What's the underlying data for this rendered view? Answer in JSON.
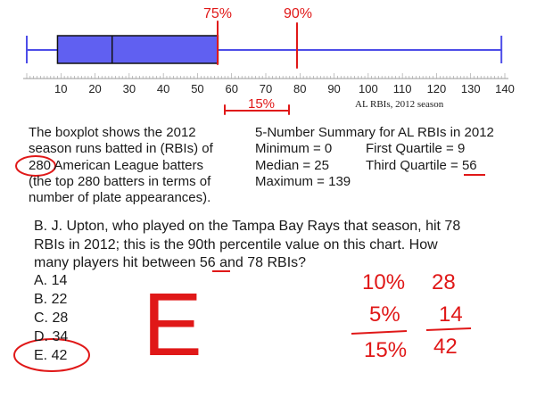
{
  "chart_data": {
    "type": "boxplot",
    "xlabel": "AL RBIs, 2012 season",
    "ticks": [
      10,
      20,
      30,
      40,
      50,
      60,
      70,
      80,
      90,
      100,
      110,
      120,
      130,
      140
    ],
    "xlim": [
      0,
      140
    ],
    "box": {
      "min": 0,
      "q1": 9,
      "median": 25,
      "q3": 56,
      "max": 139
    },
    "box_color": "#4d4de8",
    "annotations": {
      "top_left": "75%",
      "top_right": "90%",
      "bracket": "15%"
    },
    "annotation_color": "#e01818"
  },
  "description": {
    "lines": [
      "The boxplot shows the 2012",
      "season runs batted in (RBIs) of",
      "280 American League batters",
      "(the top 280 batters in terms of",
      "number of plate appearances)."
    ]
  },
  "summary": {
    "title": "5-Number Summary for AL RBIs in 2012",
    "minimum": "Minimum = 0",
    "median": "Median = 25",
    "maximum": "Maximum = 139",
    "first_quartile": "First Quartile = 9",
    "third_quartile": "Third Quartile = 56"
  },
  "question": {
    "lines": [
      "B. J. Upton, who played on the Tampa Bay Rays that season, hit 78",
      "RBIs in 2012; this is the 90th percentile value on this chart.  How",
      "many players hit between 56 and 78 RBIs?"
    ],
    "options": [
      "A. 14",
      "B. 22",
      "C. 28",
      "D. 34",
      "E. 42"
    ]
  },
  "handwriting": {
    "answer_letter": "E",
    "col1": [
      "10%",
      "5%",
      "15%"
    ],
    "col2": [
      "28",
      "14",
      "42"
    ]
  }
}
